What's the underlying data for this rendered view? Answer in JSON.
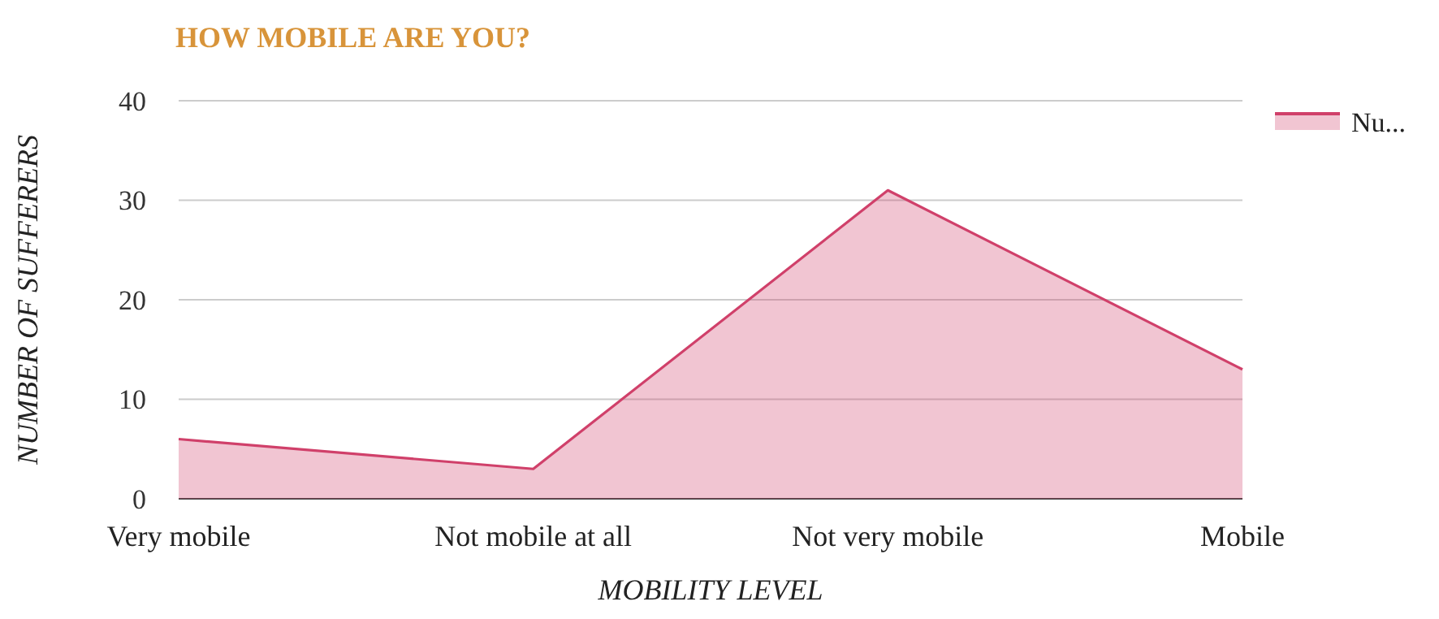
{
  "chart_data": {
    "type": "area",
    "title": "HOW MOBILE ARE YOU?",
    "xlabel": "MOBILITY LEVEL",
    "ylabel": "NUMBER OF SUFFERERS",
    "categories": [
      "Very mobile",
      "Not mobile at all",
      "Not very mobile",
      "Mobile"
    ],
    "series": [
      {
        "name": "Nu...",
        "color": "#d0406a",
        "values": [
          6,
          3,
          31,
          13
        ]
      }
    ],
    "ylim": [
      0,
      40
    ],
    "yticks": [
      0,
      10,
      20,
      30,
      40
    ],
    "grid": "y",
    "legend": "top right"
  }
}
